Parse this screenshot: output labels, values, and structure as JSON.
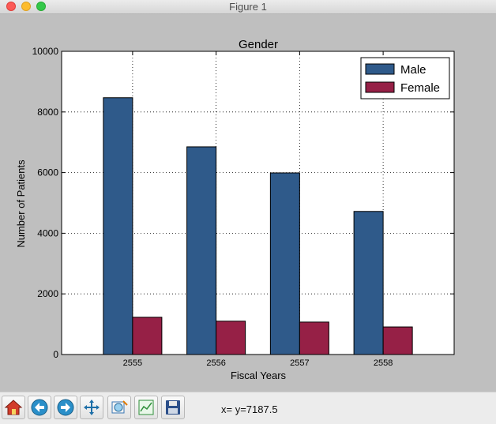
{
  "window": {
    "title": "Figure 1"
  },
  "toolbar": {
    "buttons": [
      {
        "name": "home-button",
        "icon": "home-icon"
      },
      {
        "name": "back-button",
        "icon": "back-arrow-icon"
      },
      {
        "name": "forward-button",
        "icon": "forward-arrow-icon"
      },
      {
        "name": "pan-button",
        "icon": "move-arrows-icon"
      },
      {
        "name": "zoom-button",
        "icon": "zoom-rect-icon"
      },
      {
        "name": "subplots-button",
        "icon": "subplots-icon"
      },
      {
        "name": "save-button",
        "icon": "floppy-disk-icon"
      }
    ],
    "coords": "x= y=7187.5"
  },
  "colors": {
    "male": "#2f5a8a",
    "female": "#962046"
  },
  "chart_data": {
    "type": "bar",
    "title": "Gender",
    "xlabel": "Fiscal Years",
    "ylabel": "Number of Patients",
    "categories": [
      "2555",
      "2556",
      "2557",
      "2558"
    ],
    "series": [
      {
        "name": "Male",
        "values": [
          8470,
          6850,
          5990,
          4720
        ]
      },
      {
        "name": "Female",
        "values": [
          1230,
          1100,
          1070,
          910
        ]
      }
    ],
    "ylim": [
      0,
      10000
    ],
    "yticks": [
      "0",
      "2000",
      "4000",
      "6000",
      "8000",
      "10000"
    ],
    "grid": true,
    "legend": "top-right"
  }
}
